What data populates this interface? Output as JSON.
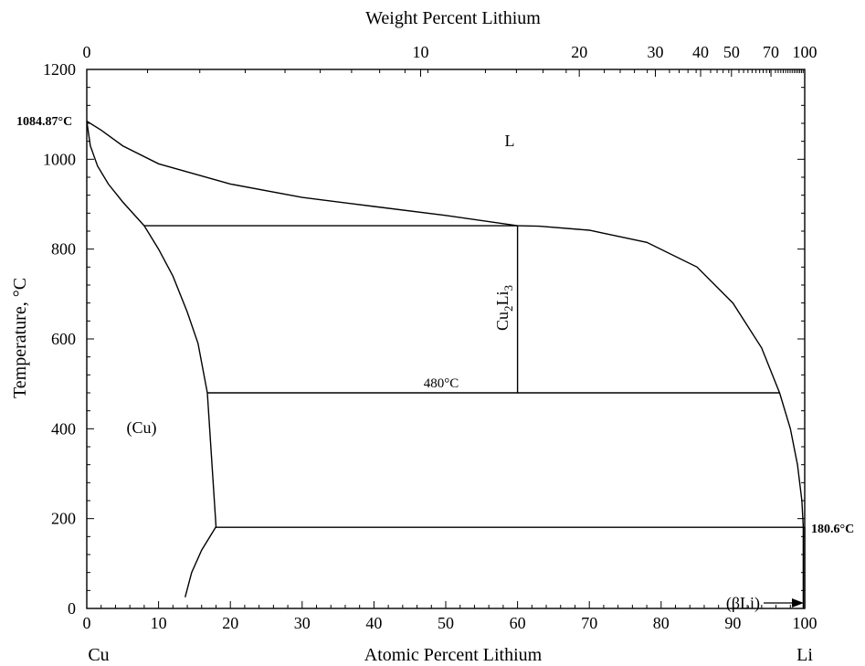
{
  "chart_data": {
    "type": "line",
    "title": "",
    "top_axis_title": "Weight Percent Lithium",
    "xlabel": "Atomic Percent Lithium",
    "ylabel": "Temperature, °C",
    "xlim": [
      0,
      100
    ],
    "ylim": [
      0,
      1200
    ],
    "x_ticks": [
      0,
      10,
      20,
      30,
      40,
      50,
      60,
      70,
      80,
      90,
      100
    ],
    "y_ticks": [
      0,
      200,
      400,
      600,
      800,
      1000,
      1200
    ],
    "top_ticks": [
      0,
      10,
      20,
      30,
      40,
      50,
      70,
      100
    ],
    "top_tick_positions_at_pct": [
      0,
      46.5,
      68.6,
      79.2,
      85.5,
      89.8,
      95.3,
      100
    ],
    "left_element": "Cu",
    "right_element": "Li",
    "grid": false,
    "series": [
      {
        "points": [
          [
            0,
            1084.87
          ],
          [
            2,
            1065
          ],
          [
            5,
            1030
          ],
          [
            10,
            990
          ],
          [
            20,
            945
          ],
          [
            30,
            915
          ],
          [
            40,
            895
          ],
          [
            50,
            875
          ],
          [
            60,
            852
          ]
        ]
      },
      {
        "points": [
          [
            0,
            1084.87
          ],
          [
            0.5,
            1030
          ],
          [
            1.5,
            985
          ],
          [
            3,
            945
          ],
          [
            5,
            905
          ],
          [
            8,
            852
          ]
        ]
      },
      {
        "points": [
          [
            8,
            852
          ],
          [
            10,
            800
          ],
          [
            12,
            740
          ],
          [
            14,
            660
          ],
          [
            15.5,
            590
          ],
          [
            16.8,
            480
          ]
        ]
      },
      {
        "points": [
          [
            16.8,
            480
          ],
          [
            18,
            182
          ]
        ]
      },
      {
        "points": [
          [
            18,
            182
          ],
          [
            16,
            130
          ],
          [
            14.6,
            80
          ],
          [
            13.7,
            25
          ]
        ]
      },
      {
        "points": [
          [
            60,
            852
          ],
          [
            63,
            851
          ],
          [
            70,
            842
          ],
          [
            78,
            815
          ],
          [
            85,
            760
          ],
          [
            90,
            680
          ],
          [
            94,
            580
          ],
          [
            96.5,
            480
          ],
          [
            98,
            400
          ],
          [
            99,
            320
          ],
          [
            99.6,
            240
          ],
          [
            99.8,
            182
          ]
        ]
      },
      {
        "points": [
          [
            99.8,
            182
          ],
          [
            99.8,
            0
          ]
        ]
      },
      {
        "points": [
          [
            100,
            180.6
          ],
          [
            100,
            0
          ]
        ]
      }
    ],
    "isotherms": [
      {
        "temperature": 852,
        "x_start": 8,
        "x_end": 60
      },
      {
        "temperature": 480,
        "x_start": 16.8,
        "x_end": 96.5
      },
      {
        "temperature": 180.6,
        "x_start": 18,
        "x_end": 100
      }
    ],
    "compound_line": {
      "x": 60,
      "y_from": 480,
      "y_to": 852
    },
    "annotations": {
      "cu_melting": "1084.87°C",
      "li_melting": "180.6°C",
      "eutectoid": "480°C",
      "liquid": "L",
      "cu_phase": "(Cu)",
      "compound_base": "Cu",
      "compound_sub1": "2",
      "compound_mid": "Li",
      "compound_sub2": "3",
      "beta_li": "(βLi)"
    }
  }
}
